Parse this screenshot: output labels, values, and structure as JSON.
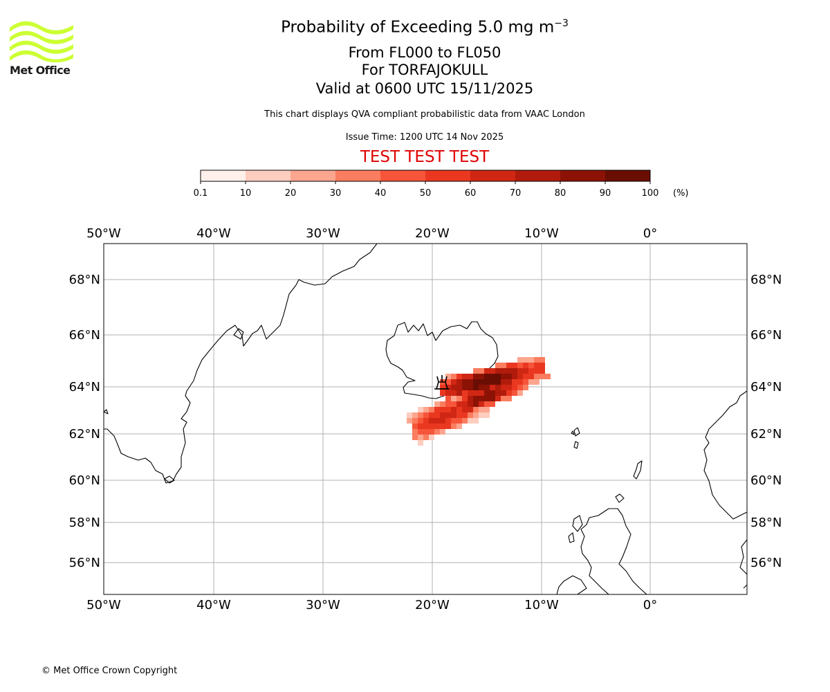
{
  "header": {
    "title_prefix": "Probability of Exceeding 5.0 mg m",
    "title_exponent": "−3",
    "line2": "From FL000 to FL050",
    "line3": "For TORFAJOKULL",
    "line4": "Valid at 0600 UTC 15/11/2025",
    "subtitle": "This chart displays QVA compliant probabilistic data from VAAC London",
    "issue_time": "Issue Time: 1200 UTC 14 Nov 2025",
    "test_banner": "TEST TEST TEST"
  },
  "logo": {
    "text": "Met Office",
    "color": "#ccff33"
  },
  "colorbar": {
    "ticks": [
      "0.1",
      "10",
      "20",
      "30",
      "40",
      "50",
      "60",
      "70",
      "80",
      "90",
      "100"
    ],
    "unit": "(%)",
    "colors": [
      "#fff0eb",
      "#fdcdbf",
      "#fca68f",
      "#fb7d5f",
      "#f6553a",
      "#ea3820",
      "#d02714",
      "#b11b0c",
      "#8d1206",
      "#6a0e04"
    ]
  },
  "map": {
    "lon_labels": [
      "50°W",
      "40°W",
      "30°W",
      "20°W",
      "10°W",
      "0°"
    ],
    "lat_labels": [
      "68°N",
      "66°N",
      "64°N",
      "62°N",
      "60°N",
      "58°N",
      "56°N"
    ],
    "volcano": "TORFAJOKULL"
  },
  "footer": {
    "copyright": "© Met Office Crown Copyright"
  }
}
